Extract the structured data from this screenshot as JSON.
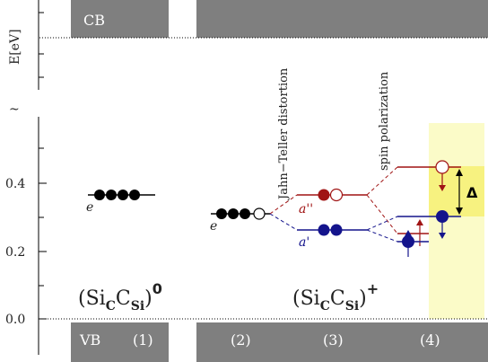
{
  "colors": {
    "band": "#7f7f7f",
    "red": "#a01414",
    "blue": "#14148c",
    "highlight_outer": "#fbfbc8",
    "highlight_inner": "#f7f280",
    "black": "#000000"
  },
  "axis": {
    "title": "E[eV]",
    "break_symbol": "~",
    "ticks": [
      "0.4",
      "0.2",
      "0.0"
    ]
  },
  "bands": {
    "cb_label": "CB",
    "vb_label": "VB"
  },
  "columns": [
    "(1)",
    "(2)",
    "(3)",
    "(4)"
  ],
  "formulas": {
    "neutral": {
      "base": "(Si",
      "sub1": "C",
      "mid": "C",
      "sub2": "Si",
      "close": ")",
      "charge": "0"
    },
    "plus": {
      "base": "(Si",
      "sub1": "C",
      "mid": "C",
      "sub2": "Si",
      "close": ")",
      "charge": "+"
    }
  },
  "level_labels": {
    "e1": "e",
    "e2": "e",
    "a_double_prime": "a''",
    "a_prime": "a'"
  },
  "annotations": {
    "jahn_teller": "Jahn−Teller distortion",
    "spin": "spin polarization",
    "delta": "Δ"
  },
  "energy_levels": {
    "col1_e": 0.365,
    "col2_e": 0.31,
    "col3_a_double_prime": 0.365,
    "col3_a_prime": 0.26,
    "col4_up_a_double_prime": 0.45,
    "col4_up_a_prime": 0.3,
    "col4_down_a_double_prime": 0.25,
    "col4_down_a_prime": 0.225
  }
}
